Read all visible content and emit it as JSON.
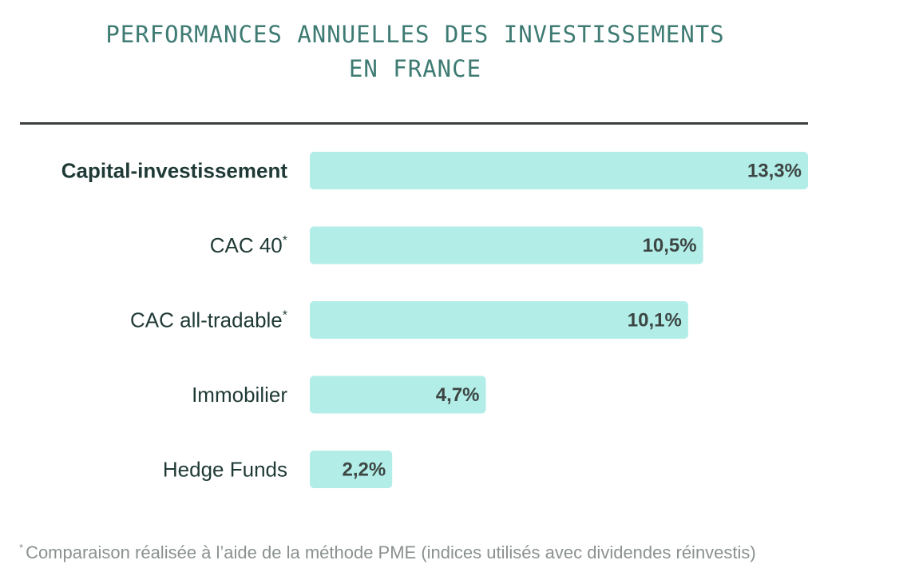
{
  "chart_data": {
    "type": "bar",
    "orientation": "horizontal",
    "title_line1": "PERFORMANCES ANNUELLES DES INVESTISSEMENTS",
    "title_line2": "EN FRANCE",
    "categories": [
      {
        "label": "Capital-investissement",
        "marker": "",
        "highlight": true
      },
      {
        "label": "CAC 40",
        "marker": "*",
        "highlight": false
      },
      {
        "label": "CAC all-tradable",
        "marker": "*",
        "highlight": false
      },
      {
        "label": "Immobilier",
        "marker": "",
        "highlight": false
      },
      {
        "label": "Hedge Funds",
        "marker": "",
        "highlight": false
      }
    ],
    "values": [
      13.3,
      10.5,
      10.1,
      4.7,
      2.2
    ],
    "value_labels": [
      "13,3%",
      "10,5%",
      "10,1%",
      "4,7%",
      "2,2%"
    ],
    "xlim": [
      0,
      13.3
    ],
    "grid": false,
    "legend": "none",
    "colors": {
      "bar": "#b2ede8",
      "title": "#3e7b73",
      "label": "#1f3a36",
      "value": "#3d4643",
      "divider": "#3b3f3e",
      "footnote": "#8a918f"
    }
  },
  "footnote": {
    "marker": "*",
    "text": "Comparaison réalisée à l’aide de la méthode PME (indices utilisés avec dividendes réinvestis)"
  }
}
